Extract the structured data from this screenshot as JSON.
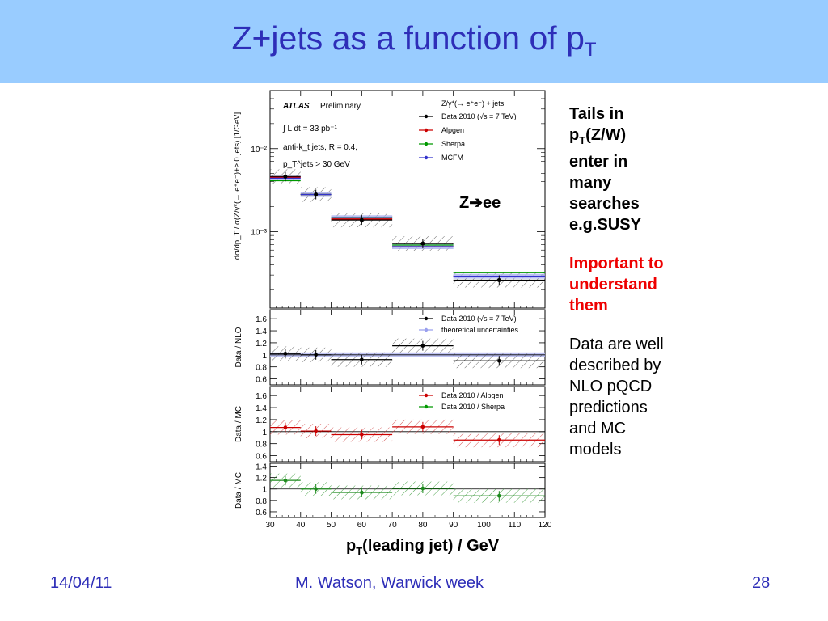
{
  "slide": {
    "title_main": "Z+jets as a function of p",
    "title_sub": "T",
    "footer_date": "14/04/11",
    "footer_author": "M. Watson, Warwick week",
    "footer_page": "28",
    "x_label_main": "p",
    "x_label_sub": "T",
    "x_label_rest": "(leading jet) / GeV",
    "annotation_zee_pre": "Z",
    "annotation_zee_arrow": "➔",
    "annotation_zee_post": "ee",
    "side": {
      "p1_l1": "Tails in",
      "p1_l2_main": "p",
      "p1_l2_sub": "T",
      "p1_l2_rest": "(Z/W)",
      "p1_l3": "enter in",
      "p1_l4": "many",
      "p1_l5": "searches",
      "p1_l6": "e.g.SUSY",
      "p2_l1": "Important to",
      "p2_l2": "understand",
      "p2_l3": "them",
      "p3_l1": "Data are well",
      "p3_l2": "described by",
      "p3_l3": "NLO pQCD",
      "p3_l4": "predictions",
      "p3_l5": "and MC",
      "p3_l6": "models"
    }
  },
  "chart_data": {
    "type": "scatter",
    "x_ticks": [
      "30",
      "40",
      "50",
      "60",
      "70",
      "80",
      "90",
      "100",
      "110",
      "120"
    ],
    "xlim": [
      30,
      120
    ],
    "bins": [
      [
        30,
        40
      ],
      [
        40,
        50
      ],
      [
        50,
        70
      ],
      [
        70,
        90
      ],
      [
        90,
        120
      ]
    ],
    "main_panel": {
      "ylabel": "dσ/dp_T / σ(Z/γ*(→ e⁺e⁻)+≥ 0 jets) [1/GeV]",
      "y_ticks": [
        "10⁻²",
        "10⁻³"
      ],
      "y_scale": "log",
      "ylim": [
        0.00012,
        0.05
      ],
      "legend_title": "Z/γ*(→ e⁺e⁻) + jets",
      "atlas_label": "ATLAS",
      "atlas_status": "Preliminary",
      "lumi_text": "∫ L dt = 33 pb⁻¹",
      "jet_text": "anti-k_t jets, R = 0.4,",
      "cut_text": "p_T^jets > 30 GeV",
      "series": [
        {
          "name": "Data 2010 (√s = 7 TeV)",
          "color": "#000000",
          "values": [
            0.0046,
            0.0028,
            0.00138,
            0.00072,
            0.00026
          ]
        },
        {
          "name": "Alpgen",
          "color": "#cc0000",
          "values": [
            0.0045,
            0.0028,
            0.00142,
            0.00066,
            0.00029
          ]
        },
        {
          "name": "Sherpa",
          "color": "#009900",
          "values": [
            0.0041,
            0.0028,
            0.00148,
            0.00069,
            0.00032
          ]
        },
        {
          "name": "MCFM",
          "color": "#3333cc",
          "values": [
            0.0044,
            0.0028,
            0.00147,
            0.00066,
            0.00029
          ]
        }
      ]
    },
    "ratio_nlo": {
      "ylabel": "Data / NLO",
      "y_ticks": [
        "1.6",
        "1.4",
        "1.2",
        "1",
        "0.8",
        "0.6"
      ],
      "ylim": [
        0.5,
        1.75
      ],
      "legend": [
        "Data 2010 (√s = 7 TeV)",
        "theoretical uncertainties"
      ],
      "values": [
        1.02,
        1.0,
        0.92,
        1.15,
        0.9
      ]
    },
    "ratio_alpgen_sherpa": {
      "ylabel": "Data / MC",
      "y_ticks": [
        "1.6",
        "1.4",
        "1.2",
        "1",
        "0.8",
        "0.6"
      ],
      "ylim": [
        0.5,
        1.75
      ],
      "legend": [
        "Data 2010 / Alpgen",
        "Data 2010 / Sherpa"
      ],
      "values": [
        1.07,
        1.01,
        0.95,
        1.08,
        0.86
      ]
    },
    "ratio_sherpa": {
      "ylabel": "Data / MC",
      "y_ticks": [
        "1.4",
        "1.2",
        "1",
        "0.8",
        "0.6"
      ],
      "ylim": [
        0.5,
        1.45
      ],
      "values": [
        1.15,
        1.0,
        0.94,
        1.01,
        0.88
      ]
    }
  }
}
